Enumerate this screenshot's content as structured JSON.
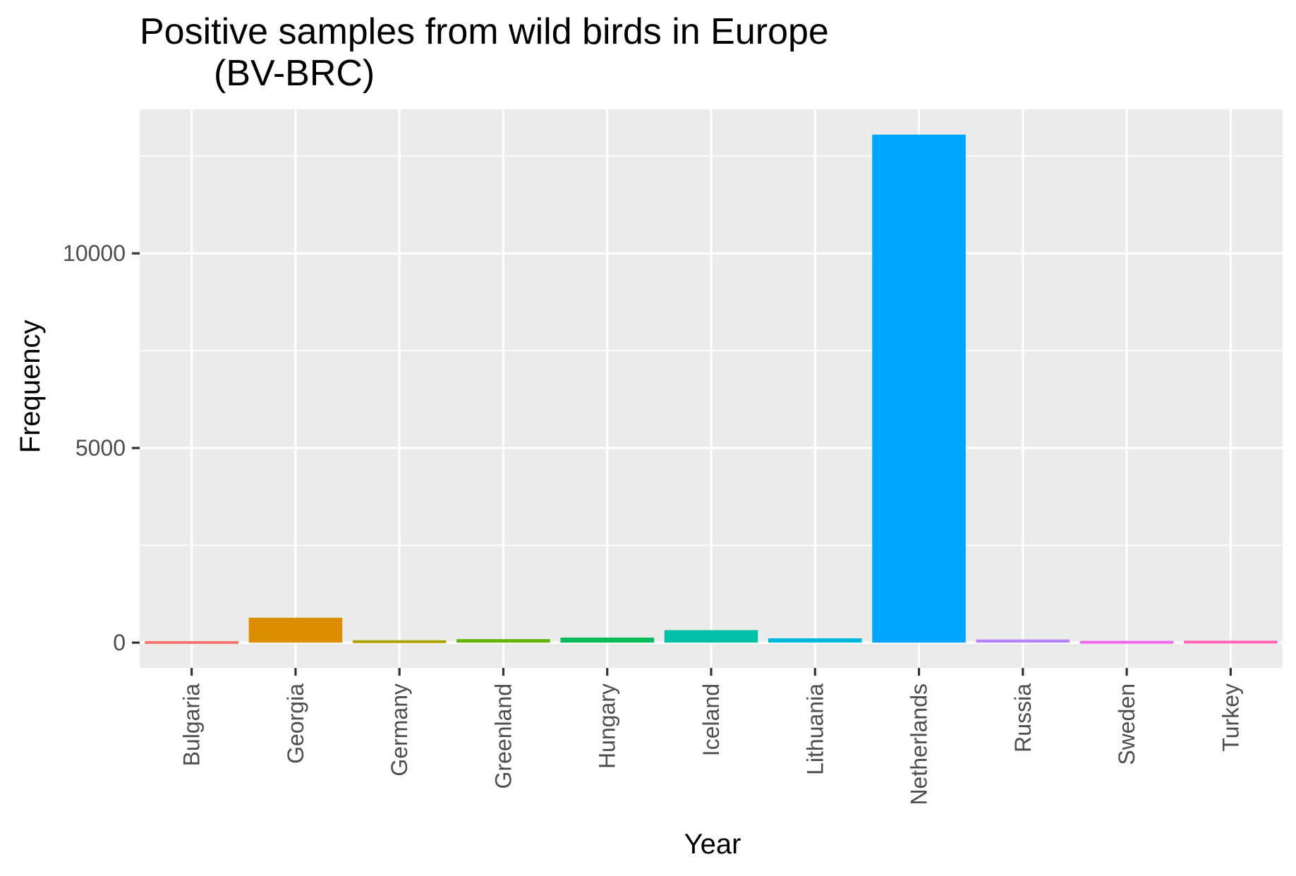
{
  "chart_data": {
    "type": "bar",
    "title": "Positive samples from wild birds in Europe",
    "subtitle": "(BV-BRC)",
    "xlabel": "Year",
    "ylabel": "Frequency",
    "categories": [
      "Bulgaria",
      "Georgia",
      "Germany",
      "Greenland",
      "Hungary",
      "Iceland",
      "Lithuania",
      "Netherlands",
      "Russia",
      "Sweden",
      "Turkey"
    ],
    "values": [
      40,
      640,
      60,
      90,
      130,
      320,
      110,
      13050,
      80,
      45,
      50
    ],
    "colors": [
      "#F8766D",
      "#DB8E00",
      "#AEA200",
      "#64B200",
      "#00BD5C",
      "#00C1A7",
      "#00BADE",
      "#00A6FF",
      "#B385FF",
      "#EF67EB",
      "#FF63B6"
    ],
    "ylim": [
      -650,
      13700
    ],
    "yticks": [
      0,
      5000,
      10000
    ],
    "ytick_labels": [
      "0",
      "5000",
      "10000"
    ],
    "grid": true,
    "panel_background": "#EBEBEB",
    "grid_color": "#FFFFFF",
    "legend": "none"
  }
}
